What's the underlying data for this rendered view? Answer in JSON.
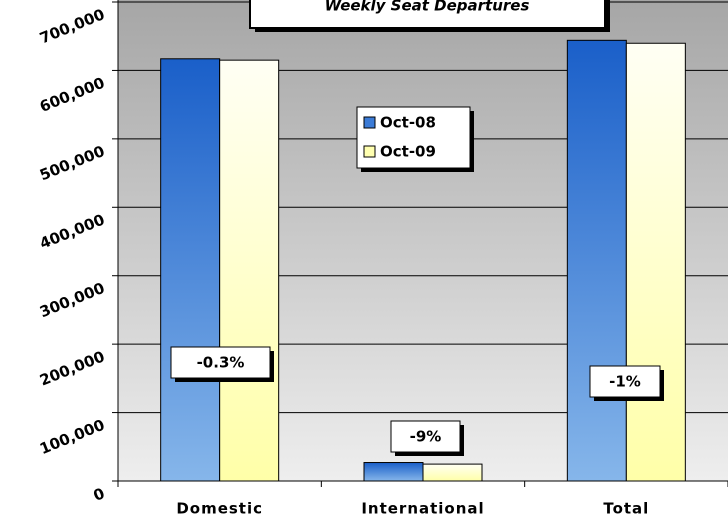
{
  "chart_data": {
    "type": "bar",
    "title": "Weekly Seat Departures",
    "categories": [
      "Domestic",
      "International",
      "Total"
    ],
    "series": [
      {
        "name": "Oct-08",
        "color": "#1a5fc9",
        "values": [
          617000,
          27000,
          644000
        ]
      },
      {
        "name": "Oct-09",
        "color": "#ffffb0",
        "values": [
          615000,
          24700,
          639700
        ]
      }
    ],
    "ylim": [
      0,
      700000
    ],
    "yticks": [
      0,
      {
        "value": 100000,
        "label": "100,000"
      },
      {
        "value": 200000,
        "label": "200,000"
      },
      {
        "value": 300000,
        "label": "300,000"
      },
      {
        "value": 400000,
        "label": "400,000"
      },
      {
        "value": 500000,
        "label": "500,000"
      },
      {
        "value": 600000,
        "label": "600,000"
      },
      {
        "value": 700000,
        "label": "700,000"
      }
    ],
    "grid": true,
    "annotations": [
      "-0.3%",
      "-9%",
      "-1%"
    ]
  }
}
